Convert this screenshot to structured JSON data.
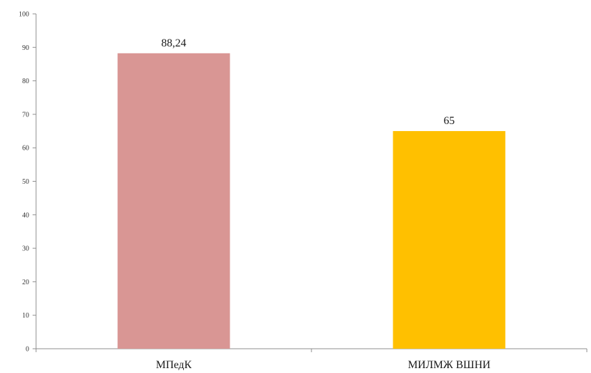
{
  "chart_data": {
    "type": "bar",
    "title": "",
    "xlabel": "",
    "ylabel": "",
    "categories": [
      "МПедК",
      "МИЛМЖ ВШНИ"
    ],
    "values": [
      88.24,
      65
    ],
    "value_labels": [
      "88,24",
      "65"
    ],
    "colors": [
      "#d99694",
      "#ffc000"
    ],
    "ylim": [
      0,
      100
    ],
    "yticks": [
      0,
      10,
      20,
      30,
      40,
      50,
      60,
      70,
      80,
      90,
      100
    ],
    "grid": false,
    "legend": "none"
  }
}
